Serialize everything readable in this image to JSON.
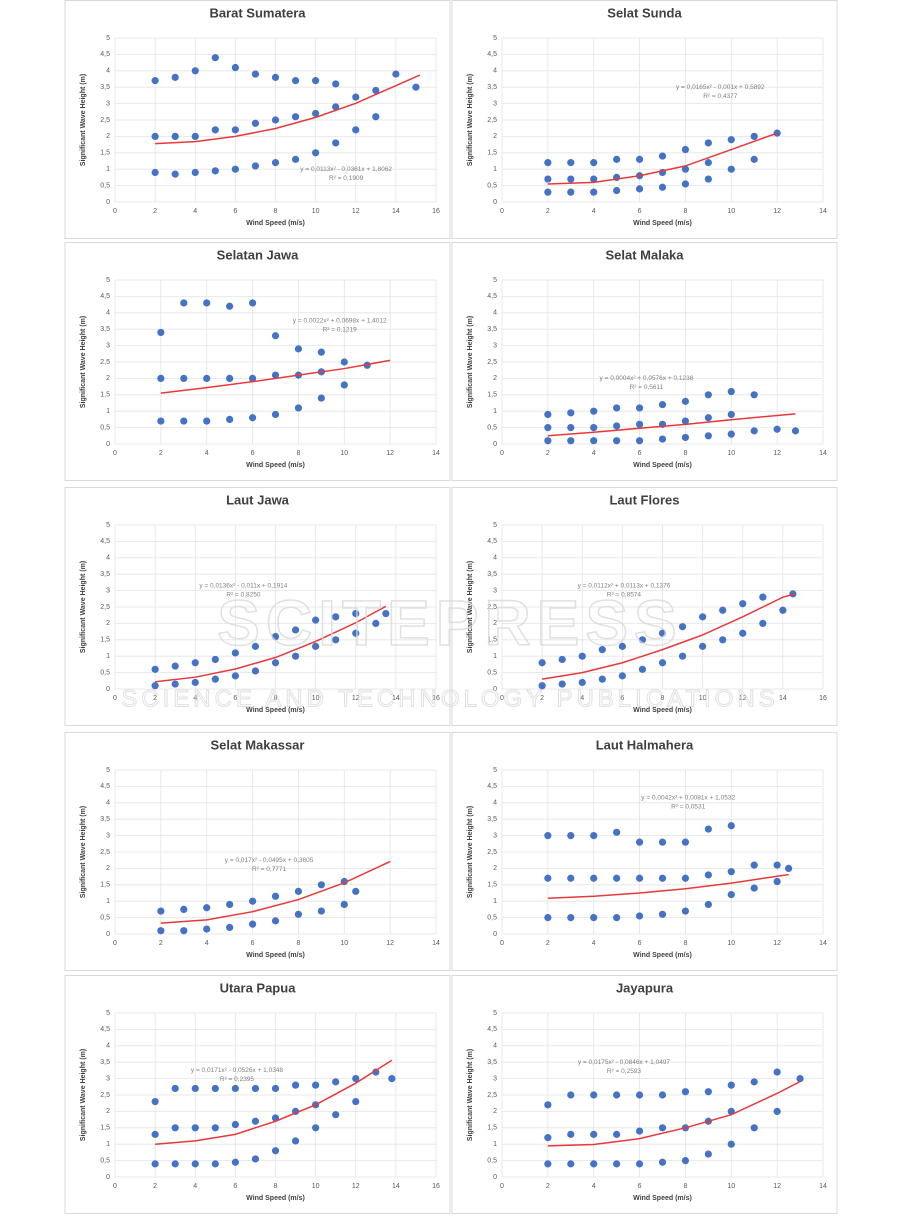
{
  "watermark": {
    "brand": "SCITEPRESS",
    "tagline": "SCIENCE AND TECHNOLOGY PUBLICATIONS"
  },
  "chart_data": [
    {
      "type": "scatter",
      "title": "Barat Sumatera",
      "x_label": "Wind Speed (m/s)",
      "y_label": "Significant Wave Height (m)",
      "equation": "y = 0,0113x² - 0,0361x + 1,8062",
      "r_squared": "R² = 0,1909",
      "color": "#4472c4",
      "trend_color": "#e8383b",
      "grid": true,
      "xlim": [
        0,
        16
      ],
      "xticks": [
        0,
        2,
        4,
        6,
        8,
        10,
        12,
        14,
        16
      ],
      "ylim": [
        0,
        5
      ],
      "yticks": [
        0,
        {
          "value": 0.5,
          "label": "0,5"
        },
        1,
        {
          "value": 1.5,
          "label": "1,5"
        },
        2,
        {
          "value": 2.5,
          "label": "2,5"
        },
        3,
        {
          "value": 3.5,
          "label": "3,5"
        },
        4,
        {
          "value": 4.5,
          "label": "4,5"
        },
        5
      ],
      "x": [
        2,
        2,
        2,
        3,
        3,
        3,
        4,
        4,
        4,
        5,
        5,
        5,
        6,
        6,
        6,
        7,
        7,
        7,
        8,
        8,
        8,
        9,
        9,
        9,
        10,
        10,
        10,
        11,
        11,
        11,
        12,
        12,
        13,
        13,
        14,
        15
      ],
      "values": [
        0.9,
        2,
        3.7,
        0.85,
        2,
        3.8,
        0.9,
        2,
        4,
        0.95,
        2.2,
        4.4,
        1,
        2.2,
        4.1,
        1.1,
        2.4,
        3.9,
        1.2,
        2.5,
        3.8,
        1.3,
        2.6,
        3.7,
        1.5,
        2.7,
        3.7,
        1.8,
        2.9,
        3.6,
        2.2,
        3.2,
        2.6,
        3.4,
        3.9,
        3.5
      ],
      "trend_x": [
        2,
        4,
        6,
        8,
        10,
        12,
        15.2
      ],
      "trend_values": [
        1.78,
        1.84,
        2.0,
        2.24,
        2.58,
        3.01,
        3.87
      ]
    },
    {
      "type": "scatter",
      "title": "Selat Sunda",
      "x_label": "Wind Speed (m/s)",
      "y_label": "Significant Wave Height (m)",
      "equation": "y = 0,0165x² - 0,001x + 0,5892",
      "r_squared": "R² = 0,4377",
      "color": "#4472c4",
      "trend_color": "#e8383b",
      "grid": true,
      "xlim": [
        0,
        14
      ],
      "xticks": [
        0,
        2,
        4,
        6,
        8,
        10,
        12,
        14
      ],
      "ylim": [
        0,
        5
      ],
      "yticks": [
        0,
        {
          "value": 0.5,
          "label": "0,5"
        },
        1,
        {
          "value": 1.5,
          "label": "1,5"
        },
        2,
        {
          "value": 2.5,
          "label": "2,5"
        },
        3,
        {
          "value": 3.5,
          "label": "3,5"
        },
        4,
        {
          "value": 4.5,
          "label": "4,5"
        },
        5
      ],
      "x": [
        2,
        2,
        2,
        3,
        3,
        3,
        4,
        4,
        4,
        5,
        5,
        5,
        6,
        6,
        6,
        7,
        7,
        7,
        8,
        8,
        8,
        9,
        9,
        9,
        10,
        10,
        11,
        11,
        12
      ],
      "values": [
        0.3,
        0.7,
        1.2,
        0.3,
        0.7,
        1.2,
        0.3,
        0.7,
        1.2,
        0.35,
        0.75,
        1.3,
        0.4,
        0.8,
        1.3,
        0.45,
        0.9,
        1.4,
        0.55,
        1.0,
        1.6,
        0.7,
        1.2,
        1.8,
        1.0,
        1.9,
        1.3,
        2.0,
        2.1
      ],
      "trend_x": [
        2,
        4,
        6,
        8,
        10,
        12
      ],
      "trend_values": [
        0.55,
        0.6,
        0.8,
        1.1,
        1.6,
        2.1
      ]
    },
    {
      "type": "scatter",
      "title": "Selatan Jawa",
      "x_label": "Wind Speed (m/s)",
      "y_label": "Significant Wave Height (m)",
      "equation": "y = 0,0022x² + 0,0698x + 1,4012",
      "r_squared": "R² = 0,1219",
      "color": "#4472c4",
      "trend_color": "#e8383b",
      "grid": true,
      "xlim": [
        0,
        14
      ],
      "xticks": [
        0,
        2,
        4,
        6,
        8,
        10,
        12,
        14
      ],
      "ylim": [
        0,
        5
      ],
      "yticks": [
        0,
        {
          "value": 0.5,
          "label": "0,5"
        },
        1,
        {
          "value": 1.5,
          "label": "1,5"
        },
        2,
        {
          "value": 2.5,
          "label": "2,5"
        },
        3,
        {
          "value": 3.5,
          "label": "3,5"
        },
        4,
        {
          "value": 4.5,
          "label": "4,5"
        },
        5
      ],
      "x": [
        2,
        2,
        2,
        3,
        3,
        3,
        4,
        4,
        4,
        5,
        5,
        5,
        6,
        6,
        6,
        7,
        7,
        7,
        8,
        8,
        8,
        9,
        9,
        9,
        10,
        10,
        11
      ],
      "values": [
        0.7,
        2,
        3.4,
        0.7,
        2,
        4.3,
        0.7,
        2,
        4.3,
        0.75,
        2,
        4.2,
        0.8,
        2,
        4.3,
        0.9,
        2.1,
        3.3,
        1.1,
        2.1,
        2.9,
        1.4,
        2.2,
        2.8,
        1.8,
        2.5,
        2.4
      ],
      "trend_x": [
        2,
        4,
        6,
        8,
        10,
        12
      ],
      "trend_values": [
        1.55,
        1.72,
        1.9,
        2.1,
        2.3,
        2.55
      ]
    },
    {
      "type": "scatter",
      "title": "Selat Malaka",
      "x_label": "Wind Speed (m/s)",
      "y_label": "Significant Wave Height (m)",
      "equation": "y = 0,0004x² + 0,0576x + 0,1238",
      "r_squared": "R² = 0,5611",
      "color": "#4472c4",
      "trend_color": "#e8383b",
      "grid": true,
      "xlim": [
        0,
        14
      ],
      "xticks": [
        0,
        2,
        4,
        6,
        8,
        10,
        12,
        14
      ],
      "ylim": [
        0,
        5
      ],
      "yticks": [
        0,
        {
          "value": 0.5,
          "label": "0,5"
        },
        1,
        {
          "value": 1.5,
          "label": "1,5"
        },
        2,
        {
          "value": 2.5,
          "label": "2,5"
        },
        3,
        {
          "value": 3.5,
          "label": "3,5"
        },
        4,
        {
          "value": 4.5,
          "label": "4,5"
        },
        5
      ],
      "x": [
        2,
        2,
        2,
        3,
        3,
        3,
        4,
        4,
        4,
        5,
        5,
        5,
        6,
        6,
        6,
        7,
        7,
        7,
        8,
        8,
        8,
        9,
        9,
        9,
        10,
        10,
        10,
        11,
        11,
        12,
        12.8
      ],
      "values": [
        0.1,
        0.5,
        0.9,
        0.1,
        0.5,
        0.95,
        0.1,
        0.5,
        1.0,
        0.1,
        0.55,
        1.1,
        0.1,
        0.6,
        1.1,
        0.15,
        0.6,
        1.2,
        0.2,
        0.7,
        1.3,
        0.25,
        0.8,
        1.5,
        0.3,
        0.9,
        1.6,
        0.4,
        1.5,
        0.45,
        0.4
      ],
      "trend_x": [
        2,
        4,
        6,
        8,
        10,
        12,
        12.8
      ],
      "trend_values": [
        0.25,
        0.36,
        0.48,
        0.6,
        0.74,
        0.87,
        0.92
      ]
    },
    {
      "type": "scatter",
      "title": "Laut Jawa",
      "x_label": "Wind Speed (m/s)",
      "y_label": "Significant Wave Height (m)",
      "equation": "y = 0,0136x² - 0,011x + 0,1914",
      "r_squared": "R² = 0,8250",
      "color": "#4472c4",
      "trend_color": "#e8383b",
      "grid": true,
      "xlim": [
        0,
        16
      ],
      "xticks": [
        0,
        2,
        4,
        6,
        8,
        10,
        12,
        14,
        16
      ],
      "ylim": [
        0,
        5
      ],
      "yticks": [
        0,
        {
          "value": 0.5,
          "label": "0,5"
        },
        1,
        {
          "value": 1.5,
          "label": "1,5"
        },
        2,
        {
          "value": 2.5,
          "label": "2,5"
        },
        3,
        {
          "value": 3.5,
          "label": "3,5"
        },
        4,
        {
          "value": 4.5,
          "label": "4,5"
        },
        5
      ],
      "x": [
        2,
        2,
        3,
        3,
        4,
        4,
        5,
        5,
        6,
        6,
        7,
        7,
        8,
        8,
        9,
        9,
        10,
        10,
        11,
        11,
        12,
        12,
        13,
        13.5
      ],
      "values": [
        0.1,
        0.6,
        0.15,
        0.7,
        0.2,
        0.8,
        0.3,
        0.9,
        0.4,
        1.1,
        0.55,
        1.3,
        0.8,
        1.6,
        1.0,
        1.8,
        1.3,
        2.1,
        1.5,
        2.2,
        1.7,
        2.3,
        2.0,
        2.3
      ],
      "trend_x": [
        2,
        4,
        6,
        8,
        10,
        12,
        13.5
      ],
      "trend_values": [
        0.22,
        0.36,
        0.61,
        0.96,
        1.45,
        2.02,
        2.52
      ]
    },
    {
      "type": "scatter",
      "title": "Laut Flores",
      "x_label": "Wind Speed (m/s)",
      "y_label": "Significant Wave Height (m)",
      "equation": "y = 0,0112x² + 0,0113x + 0,1376",
      "r_squared": "R² = 0,8574",
      "color": "#4472c4",
      "trend_color": "#e8383b",
      "grid": true,
      "xlim": [
        0,
        16
      ],
      "xticks": [
        0,
        2,
        4,
        6,
        8,
        10,
        12,
        14,
        16
      ],
      "ylim": [
        0,
        5
      ],
      "yticks": [
        0,
        {
          "value": 0.5,
          "label": "0,5"
        },
        1,
        {
          "value": 1.5,
          "label": "1,5"
        },
        2,
        {
          "value": 2.5,
          "label": "2,5"
        },
        3,
        {
          "value": 3.5,
          "label": "3,5"
        },
        4,
        {
          "value": 4.5,
          "label": "4,5"
        },
        5
      ],
      "x": [
        2,
        2,
        3,
        3,
        4,
        4,
        5,
        5,
        6,
        6,
        7,
        7,
        8,
        8,
        9,
        9,
        10,
        10,
        11,
        11,
        12,
        12,
        13,
        13,
        14,
        14.5
      ],
      "values": [
        0.1,
        0.8,
        0.15,
        0.9,
        0.2,
        1.0,
        0.3,
        1.2,
        0.4,
        1.3,
        0.6,
        1.5,
        0.8,
        1.7,
        1.0,
        1.9,
        1.3,
        2.2,
        1.5,
        2.4,
        1.7,
        2.6,
        2.0,
        2.8,
        2.4,
        2.9
      ],
      "trend_x": [
        2,
        4,
        6,
        8,
        10,
        12,
        14,
        14.6
      ],
      "trend_values": [
        0.3,
        0.5,
        0.8,
        1.2,
        1.65,
        2.2,
        2.8,
        2.9
      ]
    },
    {
      "type": "scatter",
      "title": "Selat Makassar",
      "x_label": "Wind Speed (m/s)",
      "y_label": "Significant Wave Height (m)",
      "equation": "y = 0,017x² - 0,0495x + 0,3605",
      "r_squared": "R² = 0,7771",
      "color": "#4472c4",
      "trend_color": "#e8383b",
      "grid": true,
      "xlim": [
        0,
        14
      ],
      "xticks": [
        0,
        2,
        4,
        6,
        8,
        10,
        12,
        14
      ],
      "ylim": [
        0,
        5
      ],
      "yticks": [
        0,
        {
          "value": 0.5,
          "label": "0,5"
        },
        1,
        {
          "value": 1.5,
          "label": "1,5"
        },
        2,
        {
          "value": 2.5,
          "label": "2,5"
        },
        3,
        {
          "value": 3.5,
          "label": "3,5"
        },
        4,
        {
          "value": 4.5,
          "label": "4,5"
        },
        5
      ],
      "x": [
        2,
        2,
        3,
        3,
        4,
        4,
        5,
        5,
        6,
        6,
        7,
        7,
        8,
        8,
        9,
        9,
        10,
        10,
        10.5
      ],
      "values": [
        0.1,
        0.7,
        0.1,
        0.75,
        0.15,
        0.8,
        0.2,
        0.9,
        0.3,
        1.0,
        0.4,
        1.15,
        0.6,
        1.3,
        0.7,
        1.5,
        0.9,
        1.6,
        1.3
      ],
      "trend_x": [
        2,
        4,
        6,
        8,
        10,
        12
      ],
      "trend_values": [
        0.33,
        0.43,
        0.68,
        1.05,
        1.56,
        2.21
      ]
    },
    {
      "type": "scatter",
      "title": "Laut Halmahera",
      "x_label": "Wind Speed (m/s)",
      "y_label": "Significant Wave Height (m)",
      "equation": "y = 0,0042x² + 0,0081x + 1,0532",
      "r_squared": "R² = 0,0531",
      "color": "#4472c4",
      "trend_color": "#e8383b",
      "grid": true,
      "xlim": [
        0,
        14
      ],
      "xticks": [
        0,
        2,
        4,
        6,
        8,
        10,
        12,
        14
      ],
      "ylim": [
        0,
        5
      ],
      "yticks": [
        0,
        {
          "value": 0.5,
          "label": "0,5"
        },
        1,
        {
          "value": 1.5,
          "label": "1,5"
        },
        2,
        {
          "value": 2.5,
          "label": "2,5"
        },
        3,
        {
          "value": 3.5,
          "label": "3,5"
        },
        4,
        {
          "value": 4.5,
          "label": "4,5"
        },
        5
      ],
      "x": [
        2,
        2,
        2,
        3,
        3,
        3,
        4,
        4,
        4,
        5,
        5,
        5,
        6,
        6,
        6,
        7,
        7,
        7,
        8,
        8,
        8,
        9,
        9,
        9,
        10,
        10,
        10,
        11,
        11,
        12,
        12,
        12.5
      ],
      "values": [
        0.5,
        1.7,
        3.0,
        0.5,
        1.7,
        3.0,
        0.5,
        1.7,
        3.0,
        0.5,
        1.7,
        3.1,
        0.55,
        1.7,
        2.8,
        0.6,
        1.7,
        2.8,
        0.7,
        1.7,
        2.8,
        0.9,
        1.8,
        3.2,
        1.2,
        1.9,
        3.3,
        1.4,
        2.1,
        1.6,
        2.1,
        2.0
      ],
      "trend_x": [
        2,
        4,
        6,
        8,
        10,
        12,
        12.5
      ],
      "trend_values": [
        1.09,
        1.15,
        1.25,
        1.38,
        1.55,
        1.76,
        1.81
      ]
    },
    {
      "type": "scatter",
      "title": "Utara Papua",
      "x_label": "Wind Speed (m/s)",
      "y_label": "Significant Wave Height (m)",
      "equation": "y = 0,0171x² - 0,0526x + 1,0348",
      "r_squared": "R² = 0,2395",
      "color": "#4472c4",
      "trend_color": "#e8383b",
      "grid": true,
      "xlim": [
        0,
        16
      ],
      "xticks": [
        0,
        2,
        4,
        6,
        8,
        10,
        12,
        14,
        16
      ],
      "ylim": [
        0,
        5
      ],
      "yticks": [
        0,
        {
          "value": 0.5,
          "label": "0,5"
        },
        1,
        {
          "value": 1.5,
          "label": "1,5"
        },
        2,
        {
          "value": 2.5,
          "label": "2,5"
        },
        3,
        {
          "value": 3.5,
          "label": "3,5"
        },
        4,
        {
          "value": 4.5,
          "label": "4,5"
        },
        5
      ],
      "x": [
        2,
        2,
        2,
        3,
        3,
        3,
        4,
        4,
        4,
        5,
        5,
        5,
        6,
        6,
        6,
        7,
        7,
        7,
        8,
        8,
        8,
        9,
        9,
        9,
        10,
        10,
        10,
        11,
        11,
        12,
        12,
        13,
        13.8
      ],
      "values": [
        0.4,
        1.3,
        2.3,
        0.4,
        1.5,
        2.7,
        0.4,
        1.5,
        2.7,
        0.4,
        1.5,
        2.7,
        0.45,
        1.6,
        2.7,
        0.55,
        1.7,
        2.7,
        0.8,
        1.8,
        2.7,
        1.1,
        2.0,
        2.8,
        1.5,
        2.2,
        2.8,
        1.9,
        2.9,
        2.3,
        3.0,
        3.2,
        3.0
      ],
      "trend_x": [
        2,
        4,
        6,
        8,
        10,
        12,
        13.8
      ],
      "trend_values": [
        1.0,
        1.1,
        1.3,
        1.7,
        2.2,
        2.86,
        3.56
      ]
    },
    {
      "type": "scatter",
      "title": "Jayapura",
      "x_label": "Wind Speed (m/s)",
      "y_label": "Significant Wave Height (m)",
      "equation": "y = 0,0175x² - 0,0846x + 1,0497",
      "r_squared": "R² = 0,2593",
      "color": "#4472c4",
      "trend_color": "#e8383b",
      "grid": true,
      "xlim": [
        0,
        14
      ],
      "xticks": [
        0,
        2,
        4,
        6,
        8,
        10,
        12,
        14
      ],
      "ylim": [
        0,
        5
      ],
      "yticks": [
        0,
        {
          "value": 0.5,
          "label": "0,5"
        },
        1,
        {
          "value": 1.5,
          "label": "1,5"
        },
        2,
        {
          "value": 2.5,
          "label": "2,5"
        },
        3,
        {
          "value": 3.5,
          "label": "3,5"
        },
        4,
        {
          "value": 4.5,
          "label": "4,5"
        },
        5
      ],
      "x": [
        2,
        2,
        2,
        3,
        3,
        3,
        4,
        4,
        4,
        5,
        5,
        5,
        6,
        6,
        6,
        7,
        7,
        7,
        8,
        8,
        8,
        9,
        9,
        9,
        10,
        10,
        10,
        11,
        11,
        12,
        12,
        13
      ],
      "values": [
        0.4,
        1.2,
        2.2,
        0.4,
        1.3,
        2.5,
        0.4,
        1.3,
        2.5,
        0.4,
        1.3,
        2.5,
        0.4,
        1.4,
        2.5,
        0.45,
        1.5,
        2.5,
        0.5,
        1.5,
        2.6,
        0.7,
        1.7,
        2.6,
        1.0,
        2.0,
        2.8,
        1.5,
        2.9,
        2.0,
        3.2,
        3.0
      ],
      "trend_x": [
        2,
        4,
        6,
        8,
        10,
        12,
        13
      ],
      "trend_values": [
        0.95,
        0.99,
        1.17,
        1.5,
        1.9,
        2.55,
        2.91
      ]
    }
  ]
}
